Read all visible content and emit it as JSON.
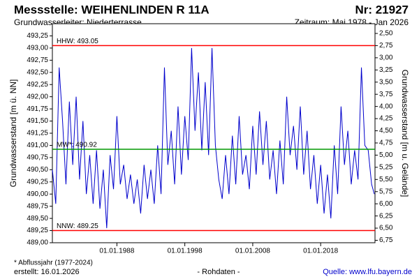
{
  "chart_data": {
    "type": "line",
    "title": "Messstelle: WEIHENLINDEN R 11A",
    "number": "Nr: 21927",
    "aquifer": "Grundwasserleiter:  Niederterrasse",
    "period": "Zeitraum: Mai 1978 - Jan 2026",
    "ylabel": "Grundwasserstand [m ü. NN]",
    "y2label": "Grundwasserstand [m u. Gelände]",
    "footnote": "* Abflussjahr (1977-2024)",
    "created": "erstellt:  16.01.2026",
    "raw": "- Rohdaten -",
    "source": "Quelle:  www.lfu.bayern.de",
    "color": "#0000cc",
    "xlim": [
      1978.5,
      2026
    ],
    "xticks": [
      {
        "value": 1988,
        "label": "01.01.1988"
      },
      {
        "value": 1998,
        "label": "01.01.1998"
      },
      {
        "value": 2008,
        "label": "01.01.2008"
      },
      {
        "value": 2018,
        "label": "01.01.2018"
      }
    ],
    "ylim": [
      489,
      493.5
    ],
    "yticks": [
      {
        "value": 489,
        "label": "489,00"
      },
      {
        "value": 489.25,
        "label": "489,25"
      },
      {
        "value": 489.5,
        "label": "489,50"
      },
      {
        "value": 489.75,
        "label": "489,75"
      },
      {
        "value": 490,
        "label": "490,00"
      },
      {
        "value": 490.25,
        "label": "490,25"
      },
      {
        "value": 490.5,
        "label": "490,50"
      },
      {
        "value": 490.75,
        "label": "490,75"
      },
      {
        "value": 491,
        "label": "491,00"
      },
      {
        "value": 491.25,
        "label": "491,25"
      },
      {
        "value": 491.5,
        "label": "491,50"
      },
      {
        "value": 491.75,
        "label": "491,75"
      },
      {
        "value": 492,
        "label": "492,00"
      },
      {
        "value": 492.25,
        "label": "492,25"
      },
      {
        "value": 492.5,
        "label": "492,50"
      },
      {
        "value": 492.75,
        "label": "492,75"
      },
      {
        "value": 493,
        "label": "493,00"
      },
      {
        "value": 493.25,
        "label": "493,25"
      }
    ],
    "y2lim": [
      2.3,
      6.8
    ],
    "y2_inverted": true,
    "y2ticks": [
      {
        "value": 2.5,
        "label": "2,50"
      },
      {
        "value": 2.75,
        "label": "2,75"
      },
      {
        "value": 3,
        "label": "3,00"
      },
      {
        "value": 3.25,
        "label": "3,25"
      },
      {
        "value": 3.5,
        "label": "3,50"
      },
      {
        "value": 3.75,
        "label": "3,75"
      },
      {
        "value": 4,
        "label": "4,00"
      },
      {
        "value": 4.25,
        "label": "4,25"
      },
      {
        "value": 4.5,
        "label": "4,50"
      },
      {
        "value": 4.75,
        "label": "4,75"
      },
      {
        "value": 5,
        "label": "5,00"
      },
      {
        "value": 5.25,
        "label": "5,25"
      },
      {
        "value": 5.5,
        "label": "5,50"
      },
      {
        "value": 5.75,
        "label": "5,75"
      },
      {
        "value": 6,
        "label": "6,00"
      },
      {
        "value": 6.25,
        "label": "6,25"
      },
      {
        "value": 6.5,
        "label": "6,50"
      },
      {
        "value": 6.75,
        "label": "6,75"
      }
    ],
    "reference_lines": [
      {
        "label": "HHW: 493.05",
        "value": 493.05,
        "color": "#ff0000"
      },
      {
        "label": "MW*: 490.92",
        "value": 490.92,
        "color": "#009900"
      },
      {
        "label": "NNW: 489.25",
        "value": 489.25,
        "color": "#ff0000"
      }
    ],
    "x": [
      1978.5,
      1979,
      1979.5,
      1980,
      1980.5,
      1981,
      1981.5,
      1982,
      1982.5,
      1983,
      1983.5,
      1984,
      1984.5,
      1985,
      1985.5,
      1986,
      1986.5,
      1987,
      1987.5,
      1988,
      1988.5,
      1989,
      1989.5,
      1990,
      1990.5,
      1991,
      1991.5,
      1992,
      1992.5,
      1993,
      1993.5,
      1994,
      1994.5,
      1995,
      1995.5,
      1996,
      1996.5,
      1997,
      1997.5,
      1998,
      1998.5,
      1999,
      1999.5,
      2000,
      2000.5,
      2001,
      2001.5,
      2002,
      2002.5,
      2003,
      2003.5,
      2004,
      2004.5,
      2005,
      2005.5,
      2006,
      2006.5,
      2007,
      2007.5,
      2008,
      2008.5,
      2009,
      2009.5,
      2010,
      2010.5,
      2011,
      2011.5,
      2012,
      2012.5,
      2013,
      2013.5,
      2014,
      2014.5,
      2015,
      2015.5,
      2016,
      2016.5,
      2017,
      2017.5,
      2018,
      2018.5,
      2019,
      2019.5,
      2020,
      2020.5,
      2021,
      2021.5,
      2022,
      2022.5,
      2023,
      2023.5,
      2024,
      2024.5,
      2025,
      2025.5,
      2025.9
    ],
    "values": [
      490.5,
      489.8,
      492.6,
      491.5,
      490.2,
      491.9,
      490.6,
      492.0,
      490.3,
      491.5,
      490.0,
      490.8,
      489.8,
      490.9,
      489.7,
      490.5,
      489.3,
      490.8,
      490.1,
      491.6,
      490.2,
      490.6,
      489.9,
      490.4,
      489.8,
      490.3,
      489.6,
      490.6,
      489.9,
      490.5,
      489.8,
      491.0,
      490.0,
      492.6,
      490.6,
      491.3,
      490.2,
      491.8,
      490.4,
      491.6,
      490.7,
      493.0,
      491.3,
      492.5,
      490.9,
      492.3,
      490.8,
      493.0,
      491.0,
      490.3,
      489.9,
      490.8,
      490.0,
      491.2,
      490.2,
      491.6,
      490.4,
      490.8,
      490.1,
      491.4,
      490.4,
      491.7,
      490.6,
      491.5,
      490.3,
      490.9,
      490.0,
      491.1,
      490.2,
      492.0,
      490.8,
      491.4,
      490.5,
      491.8,
      490.4,
      491.3,
      490.1,
      490.8,
      489.8,
      490.6,
      489.6,
      490.4,
      489.5,
      491.0,
      490.0,
      491.8,
      490.6,
      491.3,
      490.2,
      490.9,
      490.3,
      492.6,
      491.0,
      490.9,
      490.2,
      490.0
    ]
  }
}
